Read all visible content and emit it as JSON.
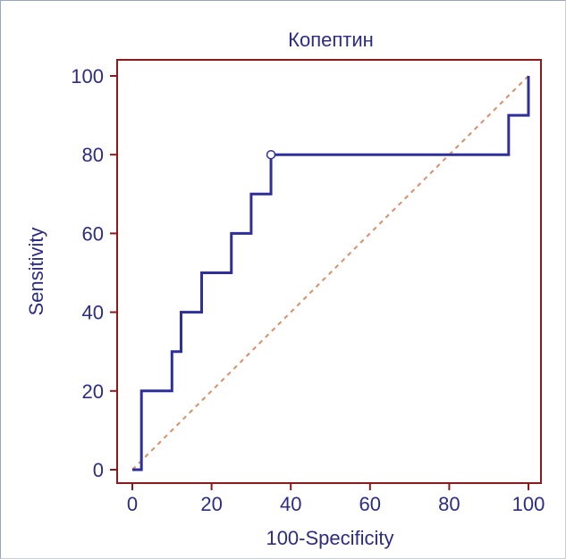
{
  "chart_data": {
    "type": "line",
    "title": "Копептин",
    "xlabel": "100-Specificity",
    "ylabel": "Sensitivity",
    "xlim": [
      0,
      100
    ],
    "ylim": [
      0,
      100
    ],
    "xticks": [
      0,
      20,
      40,
      60,
      80,
      100
    ],
    "yticks": [
      0,
      20,
      40,
      60,
      80,
      100
    ],
    "xtick_labels": [
      "0",
      "20",
      "40",
      "60",
      "80",
      "100"
    ],
    "ytick_labels": [
      "0",
      "20",
      "40",
      "60",
      "80",
      "100"
    ],
    "series": [
      {
        "style": "step",
        "x": [
          0,
          2.3,
          2.3,
          10,
          10,
          12.3,
          12.3,
          17.5,
          17.5,
          25,
          25,
          30,
          30,
          35,
          35,
          95,
          95,
          100,
          100
        ],
        "y": [
          0,
          0,
          20,
          20,
          30,
          30,
          40,
          40,
          50,
          50,
          60,
          60,
          70,
          70,
          80,
          80,
          90,
          90,
          100
        ]
      },
      {
        "style": "diagonal-reference",
        "x": [
          0,
          100
        ],
        "y": [
          0,
          100
        ]
      }
    ],
    "marker": {
      "x": 35,
      "y": 80
    },
    "grid": false,
    "colors": {
      "roc_line": "#2f2f9a",
      "diagonal": "#d4906a",
      "plot_border": "#8b1a1a",
      "text": "#2c2c83"
    }
  }
}
